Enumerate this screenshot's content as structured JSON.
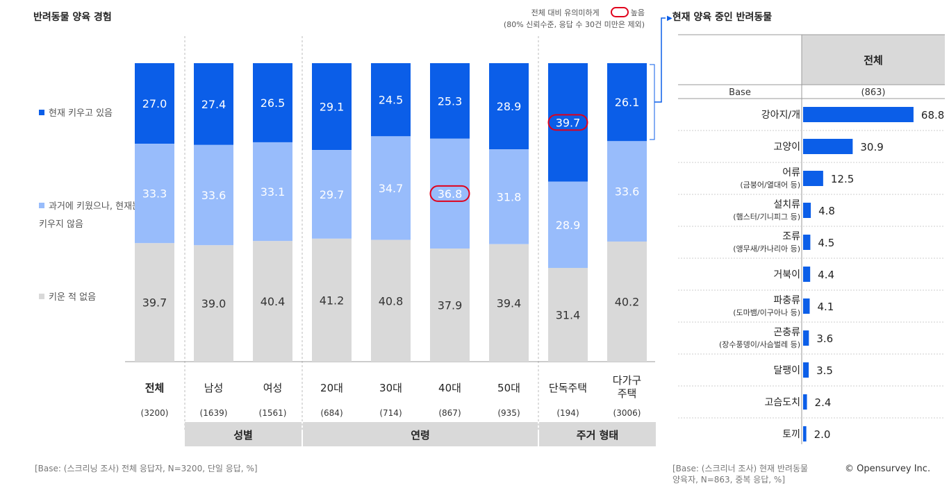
{
  "left_panel": {
    "title": "반려동물 양육 경험",
    "note_line1": "전체 대비 유의미하게",
    "note_high": "높음",
    "note_line2": "(80% 신뢰수준, 응답 수 30건 미만은 제외)",
    "footer": "[Base: (스크리닝 조사) 전체 응답자, N=3200, 단일 응답, %]"
  },
  "colors": {
    "current": "#0b5ee8",
    "past": "#98bcfb",
    "never": "#d9d9d9",
    "highlight": "#e0001b",
    "group_bg": "#d9d9d9"
  },
  "chart_data": [
    {
      "type": "bar",
      "stacked": true,
      "percent_stacked": true,
      "categories": [
        "전체",
        "남성",
        "여성",
        "20대",
        "30대",
        "40대",
        "50대",
        "단독주택",
        "다가구 주택"
      ],
      "category_bases": [
        "(3200)",
        "(1639)",
        "(1561)",
        "(684)",
        "(714)",
        "(867)",
        "(935)",
        "(194)",
        "(3006)"
      ],
      "groups": [
        {
          "name": "성별",
          "members": [
            "남성",
            "여성"
          ]
        },
        {
          "name": "연령",
          "members": [
            "20대",
            "30대",
            "40대",
            "50대"
          ]
        },
        {
          "name": "주거  형태",
          "members": [
            "단독주택",
            "다가구 주택"
          ]
        }
      ],
      "series": [
        {
          "name": "현재 키우고 있음",
          "values": [
            27.0,
            27.4,
            26.5,
            29.1,
            24.5,
            25.3,
            28.9,
            39.7,
            26.1
          ]
        },
        {
          "name": "과거에 키웠으나, 현재는 키우지 않음",
          "values": [
            33.3,
            33.6,
            33.1,
            29.7,
            34.7,
            36.8,
            31.8,
            28.9,
            33.6
          ]
        },
        {
          "name": "키운 적 없음",
          "values": [
            39.7,
            39.0,
            40.4,
            41.2,
            40.8,
            37.9,
            39.4,
            31.4,
            40.2
          ]
        }
      ],
      "highlights": [
        {
          "category": "단독주택",
          "series": "현재 키우고 있음",
          "value": 39.7
        },
        {
          "category": "40대",
          "series": "과거에 키웠으나, 현재는 키우지 않음",
          "value": 36.8
        }
      ],
      "ylim": [
        0,
        100
      ],
      "legend_position": "left"
    },
    {
      "type": "bar",
      "orientation": "horizontal",
      "title": "현재 양육 중인 반려동물",
      "column_header": "전체",
      "base_label": "Base",
      "base_value": "(863)",
      "categories": [
        {
          "name": "강아지/개",
          "sub": ""
        },
        {
          "name": "고양이",
          "sub": ""
        },
        {
          "name": "어류",
          "sub": "(금붕어/열대어 등)"
        },
        {
          "name": "설치류",
          "sub": "(햄스터/기니피그 등)"
        },
        {
          "name": "조류",
          "sub": "(앵무새/카나리아 등)"
        },
        {
          "name": "거북이",
          "sub": ""
        },
        {
          "name": "파충류",
          "sub": "(도마뱀/이구아나 등)"
        },
        {
          "name": "곤충류",
          "sub": "(장수풍뎅이/사슴벌레 등)"
        },
        {
          "name": "달팽이",
          "sub": ""
        },
        {
          "name": "고슴도치",
          "sub": ""
        },
        {
          "name": "토끼",
          "sub": ""
        }
      ],
      "values": [
        68.8,
        30.9,
        12.5,
        4.8,
        4.5,
        4.4,
        4.1,
        3.6,
        3.5,
        2.4,
        2.0
      ],
      "xlim": [
        0,
        100
      ],
      "footer_line1": "[Base: (스크리너 조사) 현재 반려동물",
      "footer_line2": "양육자, N=863, 중복 응답, %]"
    }
  ],
  "copyright": "© Opensurvey Inc."
}
